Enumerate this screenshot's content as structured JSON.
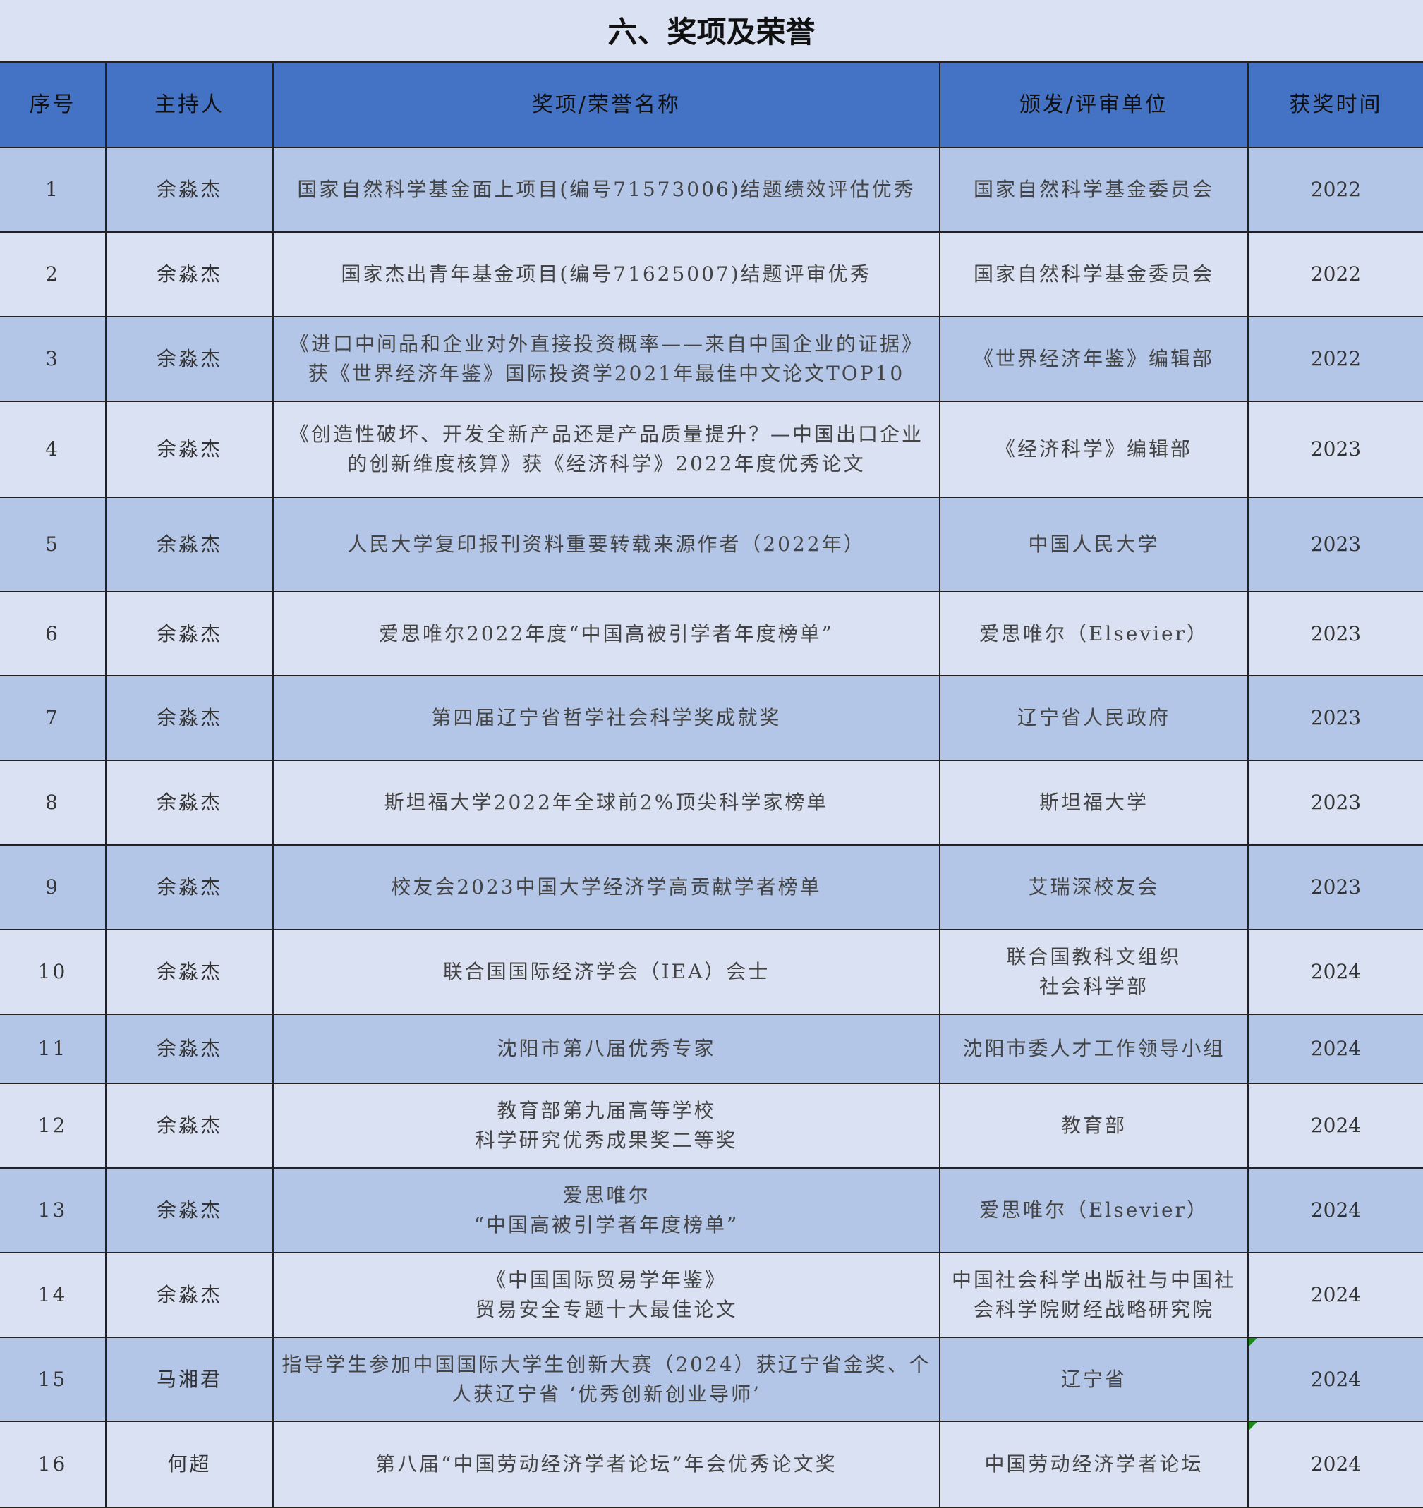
{
  "title": "六、奖项及荣誉",
  "columns": [
    "序号",
    "主持人",
    "奖项/荣誉名称",
    "颁发/评审单位",
    "获奖时间"
  ],
  "rows": [
    {
      "no": "1",
      "host": "余淼杰",
      "award": "国家自然科学基金面上项目(编号71573006)结题绩效评估优秀",
      "issuer": "国家自然科学基金委员会",
      "year": "2022"
    },
    {
      "no": "2",
      "host": "余淼杰",
      "award": "国家杰出青年基金项目(编号71625007)结题评审优秀",
      "issuer": "国家自然科学基金委员会",
      "year": "2022"
    },
    {
      "no": "3",
      "host": "余淼杰",
      "award": "《进口中间品和企业对外直接投资概率——来自中国企业的证据》\n获《世界经济年鉴》国际投资学2021年最佳中文论文TOP10",
      "issuer": "《世界经济年鉴》编辑部",
      "year": "2022"
    },
    {
      "no": "4",
      "host": "余淼杰",
      "award": "《创造性破坏、开发全新产品还是产品质量提升？—中国出口企业\n的创新维度核算》获《经济科学》2022年度优秀论文",
      "issuer": "《经济科学》编辑部",
      "year": "2023"
    },
    {
      "no": "5",
      "host": "余淼杰",
      "award": "人民大学复印报刊资料重要转载来源作者（2022年）",
      "issuer": "中国人民大学",
      "year": "2023"
    },
    {
      "no": "6",
      "host": "余淼杰",
      "award": "爱思唯尔2022年度“中国高被引学者年度榜单”",
      "issuer": "爱思唯尔（Elsevier）",
      "year": "2023"
    },
    {
      "no": "7",
      "host": "余淼杰",
      "award": "第四届辽宁省哲学社会科学奖成就奖",
      "issuer": "辽宁省人民政府",
      "year": "2023"
    },
    {
      "no": "8",
      "host": "余淼杰",
      "award": "斯坦福大学2022年全球前2%顶尖科学家榜单",
      "issuer": "斯坦福大学",
      "year": "2023"
    },
    {
      "no": "9",
      "host": "余淼杰",
      "award": "校友会2023中国大学经济学高贡献学者榜单",
      "issuer": "艾瑞深校友会",
      "year": "2023"
    },
    {
      "no": "10",
      "host": "余淼杰",
      "award": "联合国国际经济学会（IEA）会士",
      "issuer": "联合国教科文组织\n社会科学部",
      "year": "2024"
    },
    {
      "no": "11",
      "host": "余淼杰",
      "award": "沈阳市第八届优秀专家",
      "issuer": "沈阳市委人才工作领导小组",
      "year": "2024"
    },
    {
      "no": "12",
      "host": "余淼杰",
      "award": "教育部第九届高等学校\n科学研究优秀成果奖二等奖",
      "issuer": "教育部",
      "year": "2024"
    },
    {
      "no": "13",
      "host": "余淼杰",
      "award": "爱思唯尔\n“中国高被引学者年度榜单”",
      "issuer": "爱思唯尔（Elsevier）",
      "year": "2024"
    },
    {
      "no": "14",
      "host": "余淼杰",
      "award": "《中国国际贸易学年鉴》\n贸易安全专题十大最佳论文",
      "issuer": "中国社会科学出版社与中国社\n会科学院财经战略研究院",
      "year": "2024"
    },
    {
      "no": "15",
      "host": "马湘君",
      "award": "指导学生参加中国国际大学生创新大赛（2024）获辽宁省金奖、个\n人获辽宁省 ‘优秀创新创业导师’",
      "issuer": "辽宁省",
      "year": "2024"
    },
    {
      "no": "16",
      "host": "何超",
      "award": "第八届“中国劳动经济学者论坛”年会优秀论文奖",
      "issuer": "中国劳动经济学者论坛",
      "year": "2024"
    }
  ],
  "colors": {
    "header": "#4472c4",
    "row_dark": "#b4c6e7",
    "row_light": "#dae1f2"
  }
}
